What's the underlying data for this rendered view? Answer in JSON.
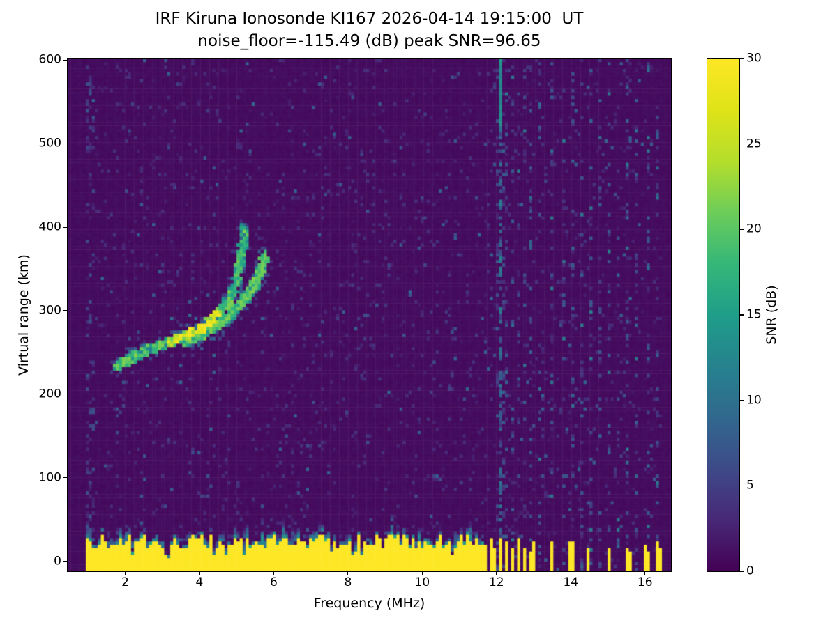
{
  "chart_data": {
    "type": "heatmap",
    "title": "IRF Kiruna Ionosonde KI167 2026-04-14 19:15:00  UT",
    "subtitle": "noise_floor=-115.49 (dB) peak SNR=96.65",
    "xlabel": "Frequency (MHz)",
    "ylabel": "Virtual range (km)",
    "xlim": [
      0.45,
      16.7
    ],
    "ylim": [
      -12,
      602
    ],
    "xticks": [
      2,
      4,
      6,
      8,
      10,
      12,
      14,
      16
    ],
    "yticks": [
      0,
      100,
      200,
      300,
      400,
      500,
      600
    ],
    "grid": false,
    "noise_floor_db": -115.49,
    "peak_snr_db": 96.65,
    "station": "IRF Kiruna Ionosonde KI167",
    "timestamp_ut": "2026-04-14 19:15:00",
    "colorbar": {
      "label": "SNR (dB)",
      "min": 0,
      "max": 30,
      "ticks": [
        0,
        5,
        10,
        15,
        20,
        25,
        30
      ],
      "position": "right",
      "viridis_stops": [
        "#440154",
        "#482878",
        "#3e4a89",
        "#31688e",
        "#26828e",
        "#1f9e89",
        "#35b779",
        "#6dcd59",
        "#b5de2b",
        "#dfe318",
        "#fde725"
      ]
    },
    "background_color": "#440154",
    "figure_background": "#ffffff",
    "features": {
      "data_freq_range": [
        0.95,
        16.45
      ],
      "ground_band": {
        "freq_range": [
          0.95,
          11.62
        ],
        "top_km_mean": 24,
        "top_km_jitter": 9,
        "snr": 30
      },
      "intermittent_columns_mhz": [
        11.72,
        11.85,
        11.98,
        12.12,
        12.28,
        12.45,
        12.62,
        12.78,
        12.95,
        13.5,
        14.0,
        14.08,
        14.5,
        15.0,
        15.52,
        16.0,
        16.3
      ],
      "rfi_column_mhz": 12.1,
      "rfi_top_segment_km": [
        520,
        602
      ],
      "faint_rfi_columns_mhz": [
        12.25,
        12.45,
        12.6,
        12.78,
        12.95,
        13.2,
        13.5,
        13.8,
        14.05,
        14.3,
        14.55,
        14.8,
        15.05,
        15.3,
        15.55,
        15.8,
        16.05,
        16.3
      ],
      "echo_trace_primary": [
        [
          1.75,
          233
        ],
        [
          2.0,
          240
        ],
        [
          2.3,
          247
        ],
        [
          2.6,
          253
        ],
        [
          2.9,
          258
        ],
        [
          3.2,
          263
        ],
        [
          3.5,
          269
        ],
        [
          3.8,
          275
        ],
        [
          4.1,
          282
        ],
        [
          4.35,
          290
        ],
        [
          4.6,
          300
        ],
        [
          4.8,
          313
        ],
        [
          4.95,
          328
        ],
        [
          5.05,
          345
        ],
        [
          5.12,
          363
        ],
        [
          5.18,
          382
        ],
        [
          5.22,
          400
        ]
      ],
      "echo_trace_secondary": [
        [
          3.6,
          262
        ],
        [
          3.9,
          268
        ],
        [
          4.2,
          275
        ],
        [
          4.5,
          284
        ],
        [
          4.8,
          294
        ],
        [
          5.05,
          305
        ],
        [
          5.3,
          318
        ],
        [
          5.5,
          332
        ],
        [
          5.65,
          348
        ],
        [
          5.78,
          366
        ]
      ],
      "bright_segment_mhz": [
        3.2,
        4.5
      ]
    }
  }
}
